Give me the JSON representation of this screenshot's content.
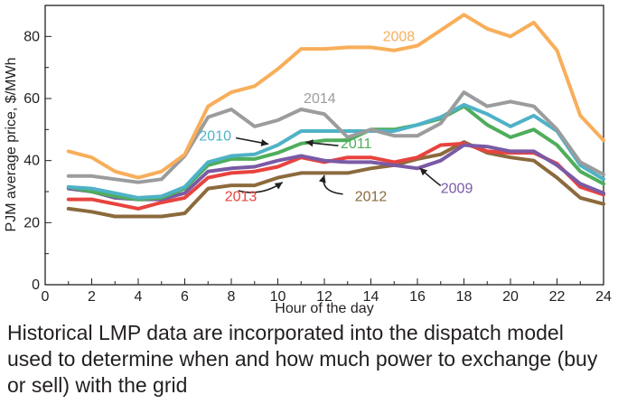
{
  "chart_data": {
    "type": "line",
    "xlabel": "Hour of the day",
    "ylabel": "PJM average price, $/MWh",
    "xlim": [
      0,
      24
    ],
    "ylim": [
      0,
      90
    ],
    "xticks": [
      0,
      2,
      4,
      6,
      8,
      10,
      12,
      14,
      16,
      18,
      20,
      22,
      24
    ],
    "yticks": [
      0,
      20,
      40,
      60,
      80
    ],
    "grid": false,
    "legend": "inline labels",
    "x": [
      1,
      2,
      3,
      4,
      5,
      6,
      7,
      8,
      9,
      10,
      11,
      12,
      13,
      14,
      15,
      16,
      17,
      18,
      19,
      20,
      21,
      22,
      23,
      24
    ],
    "series": [
      {
        "name": "2012",
        "color": "#8b6a3c",
        "values": [
          24.5,
          23.5,
          22,
          22,
          22,
          23,
          31,
          32,
          32,
          34.5,
          36,
          36,
          36,
          37.5,
          38.5,
          40.5,
          42,
          46,
          42.5,
          41,
          40,
          34.5,
          28,
          26
        ]
      },
      {
        "name": "2013",
        "color": "#e8433e",
        "values": [
          27.5,
          27.5,
          26,
          24.5,
          26.5,
          28,
          34.5,
          36,
          36.5,
          38,
          41,
          39.5,
          41,
          41,
          39.5,
          41,
          45,
          45.5,
          43,
          42.5,
          42.5,
          39,
          31.5,
          29
        ]
      },
      {
        "name": "2009",
        "color": "#7a5aa5",
        "values": [
          31,
          30,
          28,
          27.5,
          27.5,
          29.5,
          36.5,
          37.5,
          38,
          40,
          41.5,
          40,
          39.5,
          39.5,
          38.5,
          37.5,
          40,
          45,
          44.5,
          43,
          43,
          38.5,
          32.5,
          29.5
        ]
      },
      {
        "name": "2011",
        "color": "#4fad5b",
        "values": [
          31.5,
          30,
          28.5,
          27.5,
          28,
          31,
          38.5,
          40.5,
          40.5,
          42.5,
          45.5,
          46.5,
          46.5,
          50,
          50,
          51.5,
          53.5,
          57.5,
          51.5,
          47.5,
          50,
          45,
          36.5,
          32.5
        ]
      },
      {
        "name": "2010",
        "color": "#4fb2c7",
        "values": [
          31.5,
          31,
          29.5,
          28,
          28.5,
          31.5,
          39.5,
          41.5,
          42,
          45,
          49.5,
          49.5,
          49.5,
          49.5,
          49.5,
          51.5,
          54,
          58,
          55,
          51,
          54.5,
          49.5,
          38.5,
          34
        ]
      },
      {
        "name": "2014",
        "color": "#9b9c9d",
        "values": [
          35,
          35,
          34,
          33,
          34,
          41.5,
          54,
          56.5,
          51,
          53,
          56.5,
          55,
          47.5,
          50,
          48,
          48,
          52,
          62,
          57.5,
          59,
          57.5,
          50,
          39.5,
          35.5
        ]
      },
      {
        "name": "2008",
        "color": "#f8ae5a",
        "values": [
          43,
          41,
          36.5,
          34.5,
          36.5,
          42,
          57.5,
          62,
          64,
          69.5,
          76,
          76,
          76.5,
          76.5,
          75.5,
          77,
          82,
          87,
          82.5,
          80,
          84.5,
          75.5,
          54.5,
          46.5
        ]
      }
    ]
  },
  "caption": "Historical LMP data are incorporated into the dispatch model used to determine when and how much power to exchange (buy or sell) with the grid"
}
